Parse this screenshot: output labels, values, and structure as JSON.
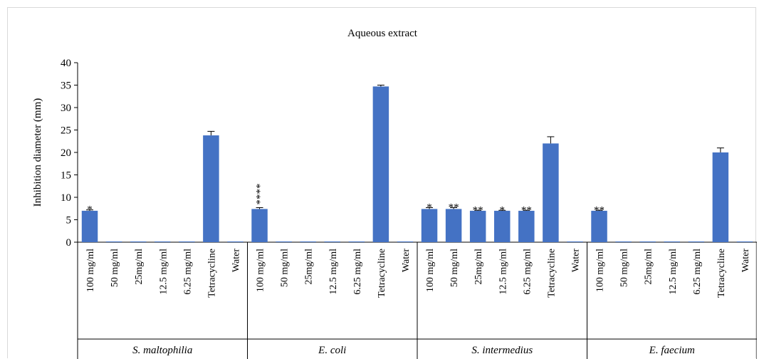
{
  "chart_data": {
    "type": "bar",
    "title": "Aqueous extract",
    "ylabel": "Inhibition diameter (mm)",
    "xlabel": "",
    "ylim": [
      0,
      40
    ],
    "yticks": [
      0,
      5,
      10,
      15,
      20,
      25,
      30,
      35,
      40
    ],
    "grid": false,
    "legend": "none",
    "bar_color": "#4472c4",
    "groups": [
      {
        "name": "S. maltophilia",
        "categories": [
          "100 mg/ml",
          "50 mg/ml",
          "25mg/ml",
          "12.5 mg/ml",
          "6.25 mg/ml",
          "Tetracycline",
          "Water"
        ],
        "values": [
          7,
          0,
          0,
          0,
          0,
          23.8,
          0
        ],
        "errors": [
          0.2,
          0,
          0,
          0,
          0,
          0.9,
          0
        ],
        "annotations": [
          "*",
          "",
          "",
          "",
          "",
          "",
          ""
        ]
      },
      {
        "name": "E. coli",
        "categories": [
          "100 mg/ml",
          "50 mg/ml",
          "25mg/ml",
          "12.5 mg/ml",
          "6.25 mg/ml",
          "Tetracycline",
          "Water"
        ],
        "values": [
          7.4,
          0,
          0,
          0,
          0,
          34.7,
          0
        ],
        "errors": [
          0.3,
          0,
          0,
          0,
          0,
          0.3,
          0
        ],
        "annotations": [
          "****",
          "",
          "",
          "",
          "",
          "",
          ""
        ]
      },
      {
        "name": "S. intermedius",
        "categories": [
          "100 mg/ml",
          "50 mg/ml",
          "25mg/ml",
          "12.5 mg/ml",
          "6.25 mg/ml",
          "Tetracycline",
          "Water"
        ],
        "values": [
          7.4,
          7.4,
          7,
          7,
          7,
          22,
          0
        ],
        "errors": [
          0.3,
          0.3,
          0.1,
          0.1,
          0.1,
          1.5,
          0
        ],
        "annotations": [
          "*",
          "**",
          "**",
          "*",
          "**",
          "",
          ""
        ]
      },
      {
        "name": "E. faecium",
        "categories": [
          "100 mg/ml",
          "50 mg/ml",
          "25mg/ml",
          "12.5 mg/ml",
          "6.25 mg/ml",
          "Tetracycline",
          "Water"
        ],
        "values": [
          7,
          0,
          0,
          0,
          0,
          20,
          0
        ],
        "errors": [
          0.1,
          0,
          0,
          0,
          0,
          1.0,
          0
        ],
        "annotations": [
          "**",
          "",
          "",
          "",
          "",
          "",
          ""
        ]
      }
    ]
  }
}
